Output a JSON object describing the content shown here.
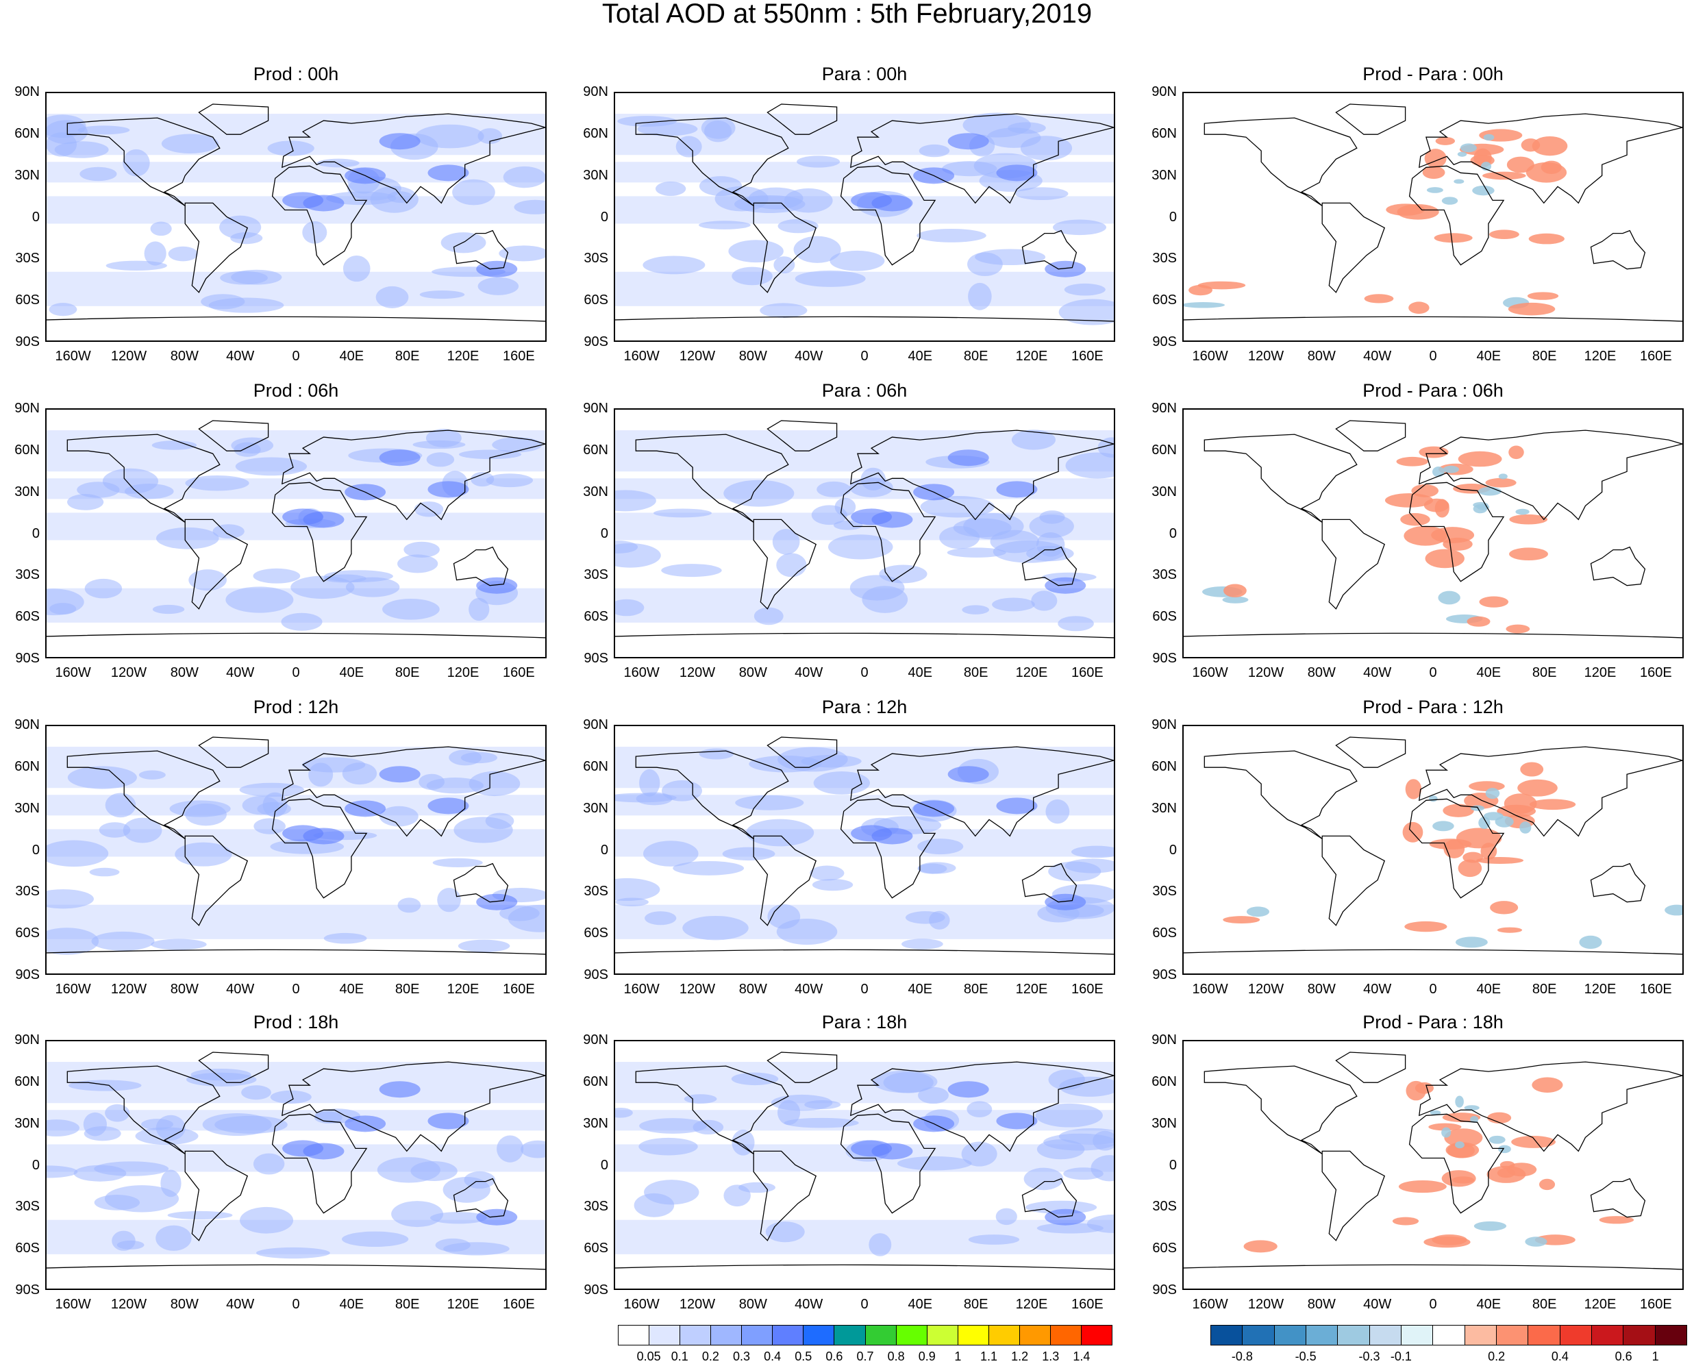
{
  "title": "Total AOD at 550nm : 5th February,2019",
  "panels": [
    [
      "Prod : 00h",
      "Para : 00h",
      "Prod - Para : 00h"
    ],
    [
      "Prod : 06h",
      "Para : 06h",
      "Prod - Para : 06h"
    ],
    [
      "Prod : 12h",
      "Para : 12h",
      "Prod - Para : 12h"
    ],
    [
      "Prod : 18h",
      "Para : 18h",
      "Prod - Para : 18h"
    ]
  ],
  "lat_labels": [
    "90N",
    "60N",
    "30N",
    "0",
    "30S",
    "60S",
    "90S"
  ],
  "lon_labels": [
    "160W",
    "120W",
    "80W",
    "40W",
    "0",
    "40E",
    "80E",
    "120E",
    "160E"
  ],
  "legend_aod": {
    "labels": [
      "0.05",
      "0.1",
      "0.2",
      "0.3",
      "0.4",
      "0.5",
      "0.6",
      "0.7",
      "0.8",
      "0.9",
      "1",
      "1.1",
      "1.2",
      "1.3",
      "1.4"
    ],
    "colors": [
      "#ffffff",
      "#dfe7ff",
      "#bfcfff",
      "#9fb7ff",
      "#7f9fff",
      "#5f7fff",
      "#1e6cff",
      "#009999",
      "#33cc33",
      "#66ff00",
      "#ccff33",
      "#ffff00",
      "#ffcc00",
      "#ff9900",
      "#ff6600",
      "#ff0000"
    ]
  },
  "legend_diff": {
    "labels": [
      "-0.8",
      "-0.5",
      "-0.3",
      "-0.1",
      "0.2",
      "0.4",
      "0.6",
      "1"
    ],
    "colors": [
      "#08519c",
      "#2171b5",
      "#4292c6",
      "#6baed6",
      "#9ecae1",
      "#c6dbef",
      "#e0f3f8",
      "#ffffff",
      "#fcbba1",
      "#fc9272",
      "#fb6a4a",
      "#ef3b2c",
      "#cb181d",
      "#a50f15",
      "#67000d"
    ]
  },
  "colors": {
    "aod_low": "#dfe7ff",
    "aod_mid": "#9fb7ff",
    "aod_high": "#5f7fff",
    "diff_pos": "#fc9272",
    "diff_neg": "#9ecae1"
  }
}
